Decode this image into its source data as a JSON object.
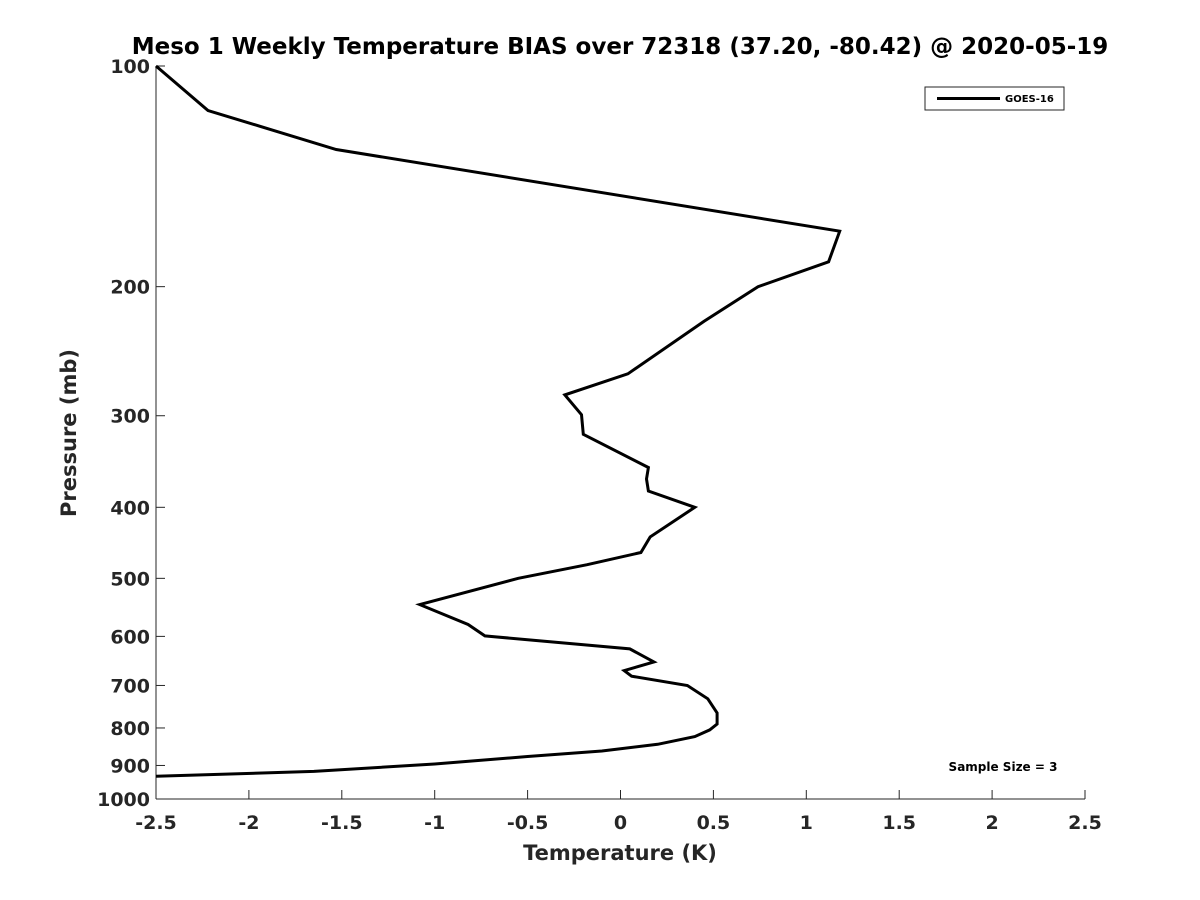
{
  "chart_data": {
    "type": "line",
    "title": "Meso 1 Weekly Temperature BIAS over 72318 (37.20, -80.42) @ 2020-05-19",
    "xlabel": "Temperature (K)",
    "ylabel": "Pressure (mb)",
    "xlim": [
      -2.5,
      2.5
    ],
    "ylim": [
      100,
      1000
    ],
    "y_scale": "log",
    "y_reversed": true,
    "x_ticks": [
      -2.5,
      -2,
      -1.5,
      -1,
      -0.5,
      0,
      0.5,
      1,
      1.5,
      2,
      2.5
    ],
    "x_tick_labels": [
      "-2.5",
      "-2",
      "-1.5",
      "-1",
      "-0.5",
      "0",
      "0.5",
      "1",
      "1.5",
      "2",
      "2.5"
    ],
    "y_ticks": [
      100,
      200,
      300,
      400,
      500,
      600,
      700,
      800,
      900,
      1000
    ],
    "y_tick_labels": [
      "100",
      "200",
      "300",
      "400",
      "500",
      "600",
      "700",
      "800",
      "900",
      "1000"
    ],
    "grid": false,
    "legend_position": "top-right",
    "series": [
      {
        "name": "GOES-16",
        "color": "#000000",
        "points": [
          {
            "x": -2.5,
            "y": 100
          },
          {
            "x": -2.22,
            "y": 115
          },
          {
            "x": -1.53,
            "y": 130
          },
          {
            "x": 1.18,
            "y": 168
          },
          {
            "x": 1.12,
            "y": 185
          },
          {
            "x": 0.74,
            "y": 200
          },
          {
            "x": 0.45,
            "y": 223
          },
          {
            "x": 0.04,
            "y": 263
          },
          {
            "x": -0.3,
            "y": 281
          },
          {
            "x": -0.21,
            "y": 299
          },
          {
            "x": -0.2,
            "y": 318
          },
          {
            "x": 0.15,
            "y": 353
          },
          {
            "x": 0.14,
            "y": 366
          },
          {
            "x": 0.15,
            "y": 380
          },
          {
            "x": 0.4,
            "y": 400
          },
          {
            "x": 0.16,
            "y": 439
          },
          {
            "x": 0.11,
            "y": 461
          },
          {
            "x": -0.18,
            "y": 479
          },
          {
            "x": -0.55,
            "y": 500
          },
          {
            "x": -1.08,
            "y": 543
          },
          {
            "x": -0.82,
            "y": 578
          },
          {
            "x": -0.73,
            "y": 599
          },
          {
            "x": 0.05,
            "y": 624
          },
          {
            "x": 0.18,
            "y": 650
          },
          {
            "x": 0.02,
            "y": 668
          },
          {
            "x": 0.06,
            "y": 680
          },
          {
            "x": 0.36,
            "y": 700
          },
          {
            "x": 0.47,
            "y": 730
          },
          {
            "x": 0.52,
            "y": 763
          },
          {
            "x": 0.52,
            "y": 790
          },
          {
            "x": 0.48,
            "y": 805
          },
          {
            "x": 0.4,
            "y": 822
          },
          {
            "x": 0.2,
            "y": 842
          },
          {
            "x": -0.1,
            "y": 860
          },
          {
            "x": -0.5,
            "y": 875
          },
          {
            "x": -1.0,
            "y": 896
          },
          {
            "x": -1.65,
            "y": 917
          },
          {
            "x": -2.5,
            "y": 931
          }
        ]
      }
    ],
    "annotations": [
      {
        "text": "Sample Size = 3"
      }
    ]
  }
}
